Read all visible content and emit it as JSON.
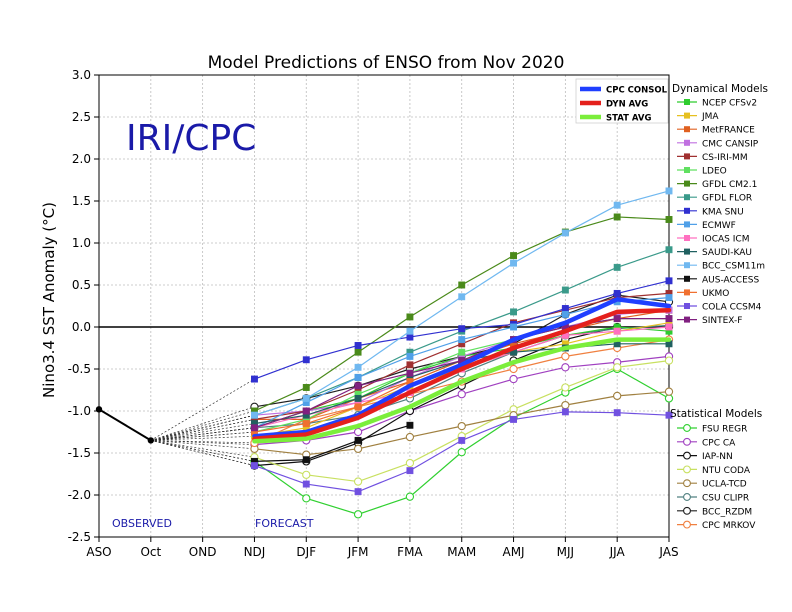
{
  "chart_data": {
    "type": "line",
    "title": "Model Predictions of ENSO from Nov 2020",
    "ylabel": "Nino3.4 SST Anomaly (°C)",
    "watermark": "IRI/CPC",
    "observed_label": "OBSERVED",
    "forecast_label": "FORECAST",
    "categories": [
      "ASO",
      "Oct",
      "OND",
      "NDJ",
      "DJF",
      "JFM",
      "FMA",
      "MAM",
      "AMJ",
      "MJJ",
      "JJA",
      "JAS"
    ],
    "ylim": [
      -2.5,
      3.0
    ],
    "yticks": [
      "3.0",
      "2.5",
      "2.0",
      "1.5",
      "1.0",
      "0.5",
      "0.0",
      "-0.5",
      "-1.0",
      "-1.5",
      "-2.0",
      "-2.5"
    ],
    "grid": true,
    "reference_line": 0.0,
    "observed": {
      "x": [
        "ASO",
        "Oct"
      ],
      "values": [
        -0.98,
        -1.35
      ]
    },
    "forecast_x": [
      "NDJ",
      "DJF",
      "JFM",
      "FMA",
      "MAM",
      "AMJ",
      "MJJ",
      "JJA",
      "JAS"
    ],
    "summary_lines": [
      {
        "name": "CPC CONSOL",
        "color": "#1f3fff",
        "values": [
          -1.3,
          -1.25,
          -1.05,
          -0.7,
          -0.45,
          -0.15,
          0.05,
          0.33,
          0.25
        ]
      },
      {
        "name": "DYN AVG",
        "color": "#e4201c",
        "values": [
          -1.33,
          -1.28,
          -1.08,
          -0.78,
          -0.5,
          -0.25,
          -0.05,
          0.18,
          0.2
        ]
      },
      {
        "name": "STAT AVG",
        "color": "#7bee3b",
        "values": [
          -1.36,
          -1.33,
          -1.18,
          -0.95,
          -0.65,
          -0.42,
          -0.25,
          -0.15,
          -0.15
        ]
      }
    ],
    "dynamical_title": "Dynamical Models",
    "dynamical_models": [
      {
        "name": "NCEP CFSv2",
        "color": "#2ecc2e",
        "values": [
          -1.2,
          -1.0,
          -0.85,
          -0.55,
          -0.35,
          -0.25,
          -0.1,
          0.0,
          -0.05
        ]
      },
      {
        "name": "JMA",
        "color": "#e6c020",
        "values": [
          -1.3,
          -1.2,
          -0.95,
          -0.7,
          -0.5,
          -0.3,
          -0.2,
          -0.05,
          0.05
        ]
      },
      {
        "name": "MetFRANCE",
        "color": "#e06020",
        "values": [
          -1.1,
          -1.1,
          -0.85,
          -0.65,
          -0.4,
          -0.2,
          -0.05,
          0.1,
          0.2
        ]
      },
      {
        "name": "CMC CANSIP",
        "color": "#c070e0",
        "values": [
          -1.05,
          -1.0,
          -0.9,
          -0.6,
          -0.35,
          -0.15,
          0.0,
          0.15,
          0.2
        ]
      },
      {
        "name": "CS-IRI-MM",
        "color": "#a03030",
        "values": [
          -1.1,
          -1.0,
          -0.75,
          -0.45,
          -0.2,
          0.05,
          0.2,
          0.35,
          0.4
        ]
      },
      {
        "name": "LDEO",
        "color": "#60e060",
        "values": [
          -1.25,
          -1.1,
          -0.8,
          -0.55,
          -0.3,
          -0.15,
          0.0,
          0.1,
          0.1
        ]
      },
      {
        "name": "GFDL CM2.1",
        "color": "#4a8a1a",
        "values": [
          -1.0,
          -0.72,
          -0.3,
          0.12,
          0.5,
          0.85,
          1.13,
          1.31,
          1.28
        ]
      },
      {
        "name": "GFDL FLOR",
        "color": "#3a9a8a",
        "values": [
          -1.05,
          -0.85,
          -0.6,
          -0.3,
          -0.05,
          0.18,
          0.44,
          0.71,
          0.92
        ]
      },
      {
        "name": "KMA SNU",
        "color": "#3030d0",
        "values": [
          -0.62,
          -0.39,
          -0.22,
          -0.12,
          -0.02,
          0.03,
          0.22,
          0.4,
          0.55
        ]
      },
      {
        "name": "ECMWF",
        "color": "#50a0e8",
        "values": [
          -1.2,
          -0.9,
          -0.6,
          -0.35,
          -0.15,
          0.0,
          0.15,
          0.3,
          0.35
        ]
      },
      {
        "name": "IOCAS ICM",
        "color": "#ff70c0",
        "values": [
          -1.2,
          -1.05,
          -0.9,
          -0.78,
          -0.5,
          -0.3,
          -0.1,
          -0.05,
          0.0
        ]
      },
      {
        "name": "SAUDI-KAU",
        "color": "#206060",
        "values": [
          -1.15,
          -1.05,
          -0.85,
          -0.6,
          -0.4,
          -0.3,
          -0.25,
          -0.2,
          -0.2
        ]
      },
      {
        "name": "BCC_CSM11m",
        "color": "#70b8f0",
        "values": [
          -1.05,
          -0.85,
          -0.48,
          -0.05,
          0.36,
          0.76,
          1.12,
          1.45,
          1.62
        ]
      },
      {
        "name": "AUS-ACCESS",
        "color": "#111111",
        "values": [
          -1.6,
          -1.58,
          -1.35,
          -1.17,
          null,
          null,
          null,
          null,
          null
        ]
      },
      {
        "name": "UKMO",
        "color": "#f07030",
        "values": [
          -1.25,
          -1.15,
          -0.95,
          -0.65,
          null,
          null,
          null,
          null,
          null
        ]
      },
      {
        "name": "COLA CCSM4",
        "color": "#7050e0",
        "values": [
          -1.65,
          -1.87,
          -1.96,
          -1.71,
          -1.35,
          -1.1,
          -1.01,
          -1.02,
          -1.05
        ]
      },
      {
        "name": "SINTEX-F",
        "color": "#802080",
        "values": [
          -1.2,
          -1.0,
          -0.7,
          -0.55,
          -0.4,
          -0.15,
          0.0,
          0.1,
          0.1
        ]
      }
    ],
    "statistical_title": "Statistical Models",
    "statistical_models": [
      {
        "name": "FSU REGR",
        "color": "#30d030",
        "values": [
          -1.6,
          -2.04,
          -2.23,
          -2.02,
          -1.49,
          -1.08,
          -0.78,
          -0.5,
          -0.85
        ]
      },
      {
        "name": "CPC CA",
        "color": "#a040c0",
        "values": [
          -1.4,
          -1.35,
          -1.25,
          -1.0,
          -0.8,
          -0.62,
          -0.48,
          -0.42,
          -0.35
        ]
      },
      {
        "name": "IAP-NN",
        "color": "#111111",
        "values": [
          -1.65,
          -1.6,
          -1.38,
          -1.0,
          -0.7,
          -0.4,
          -0.15,
          0.0,
          0.0
        ]
      },
      {
        "name": "NTU CODA",
        "color": "#c8e060",
        "values": [
          -1.55,
          -1.76,
          -1.84,
          -1.62,
          -1.3,
          -0.98,
          -0.72,
          -0.48,
          -0.4
        ]
      },
      {
        "name": "UCLA-TCD",
        "color": "#a08040",
        "values": [
          -1.45,
          -1.52,
          -1.45,
          -1.31,
          -1.18,
          -1.05,
          -0.93,
          -0.82,
          -0.77
        ]
      },
      {
        "name": "CSU CLIPR",
        "color": "#508080",
        "values": [
          -1.2,
          -1.15,
          -1.05,
          -0.85,
          -0.55,
          -0.3,
          -0.1,
          -0.02,
          0.02
        ]
      },
      {
        "name": "BCC_RZDM",
        "color": "#202020",
        "values": [
          -0.95,
          -0.85,
          -0.7,
          -0.5,
          -0.35,
          -0.2,
          0.15,
          0.38,
          0.3
        ]
      },
      {
        "name": "CPC MRKOV",
        "color": "#f08040",
        "values": [
          -1.38,
          -1.1,
          -0.95,
          -0.8,
          -0.65,
          -0.5,
          -0.35,
          -0.25,
          -0.15
        ]
      }
    ]
  }
}
